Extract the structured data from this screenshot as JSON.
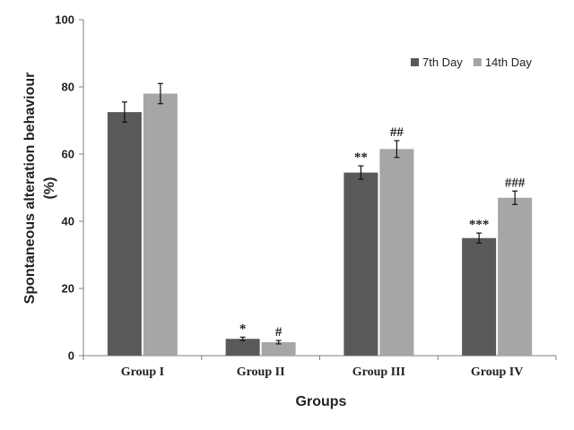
{
  "chart_data": {
    "type": "bar",
    "title": "",
    "xlabel": "Groups",
    "ylabel_lines": [
      "Spontaneous alteration behaviour",
      "(%)"
    ],
    "categories": [
      "Group I",
      "Group II",
      "Group III",
      "Group IV"
    ],
    "ylim": [
      0,
      100
    ],
    "yticks": [
      0,
      20,
      40,
      60,
      80,
      100
    ],
    "legend_position": "top-right",
    "series": [
      {
        "name": "7th Day",
        "color": "#595959",
        "values": [
          72.5,
          5,
          54.5,
          35
        ],
        "errors": [
          3,
          0.5,
          2,
          1.5
        ],
        "annotations": [
          "",
          "*",
          "**",
          "***"
        ]
      },
      {
        "name": "14th Day",
        "color": "#a6a6a6",
        "values": [
          78,
          4,
          61.5,
          47
        ],
        "errors": [
          3,
          0.5,
          2.5,
          2
        ],
        "annotations": [
          "",
          "#",
          "##",
          "###"
        ]
      }
    ]
  }
}
